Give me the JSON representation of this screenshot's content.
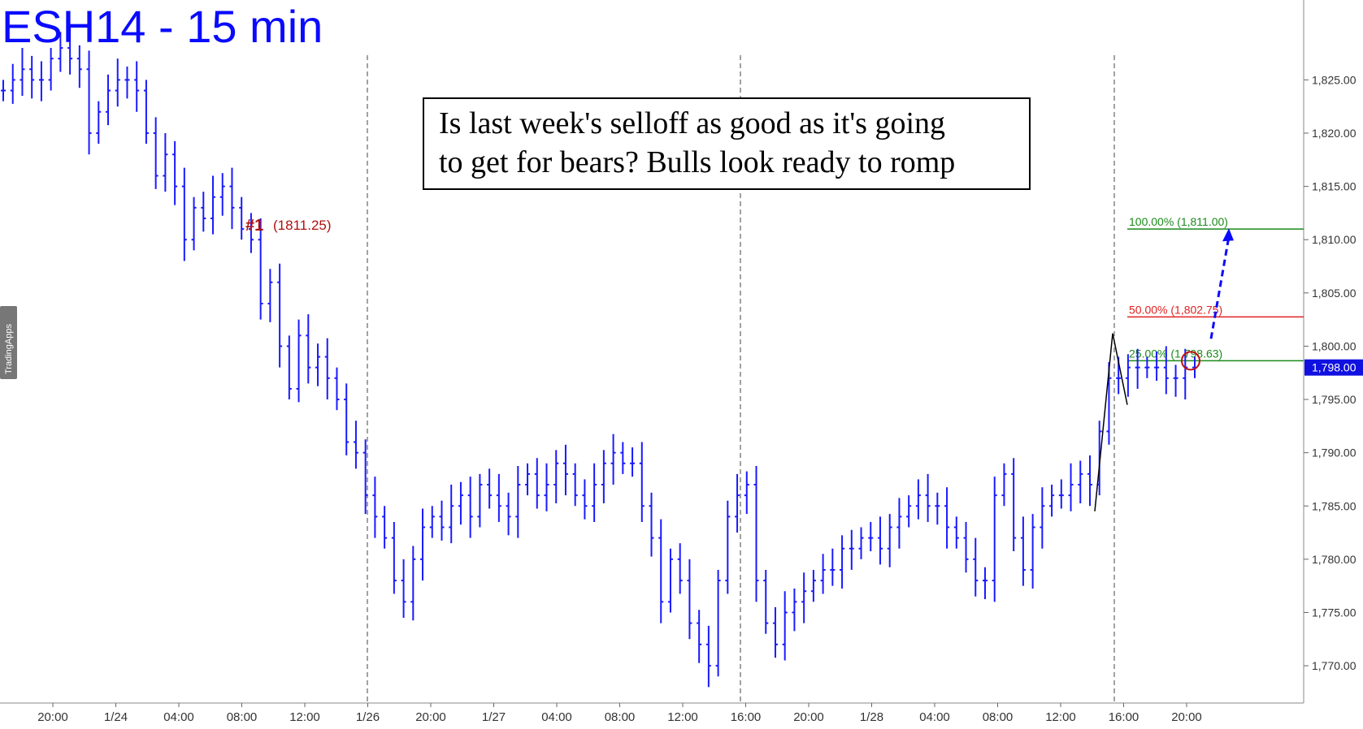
{
  "chart_data": {
    "type": "ohlc",
    "title": "ESH14 - 15 min",
    "annotation_box": {
      "line1": "Is last week's selloff as good as it's going",
      "line2": "to get for bears? Bulls look ready to romp"
    },
    "y_axis": {
      "ticks": [
        1770,
        1775,
        1780,
        1785,
        1790,
        1795,
        1800,
        1805,
        1810,
        1815,
        1820,
        1825
      ],
      "tick_labels": [
        "1,770.00",
        "1,775.00",
        "1,780.00",
        "1,785.00",
        "1,790.00",
        "1,795.00",
        "1,800.00",
        "1,805.00",
        "1,810.00",
        "1,815.00",
        "1,820.00",
        "1,825.00"
      ],
      "ylim": [
        1766.5,
        1832.5
      ],
      "last_price_label": "1,798.00",
      "last_price": 1798.0
    },
    "x_axis": {
      "tick_labels": [
        "20:00",
        "1/24",
        "04:00",
        "08:00",
        "12:00",
        "1/26",
        "20:00",
        "1/27",
        "04:00",
        "08:00",
        "12:00",
        "16:00",
        "20:00",
        "1/28",
        "04:00",
        "08:00",
        "12:00",
        "16:00",
        "20:00"
      ],
      "session_breaks": [
        "1/26",
        "16:00",
        "16:00"
      ]
    },
    "series_close": [
      1824,
      1825,
      1826,
      1825,
      1825,
      1827,
      1828,
      1827,
      1826,
      1820,
      1822,
      1824,
      1825,
      1825,
      1824,
      1820,
      1816,
      1818,
      1815,
      1810,
      1813,
      1812,
      1814,
      1815,
      1813,
      1811,
      1810,
      1804,
      1806,
      1800,
      1796,
      1801,
      1798,
      1799,
      1797,
      1795,
      1791,
      1790,
      1786,
      1784,
      1782,
      1778,
      1776,
      1780,
      1783,
      1784,
      1783,
      1785,
      1786,
      1784,
      1787,
      1786,
      1785,
      1784,
      1787,
      1788,
      1786,
      1787,
      1789,
      1788,
      1786,
      1785,
      1787,
      1789,
      1790,
      1789,
      1789,
      1785,
      1782,
      1776,
      1780,
      1778,
      1774,
      1772,
      1770,
      1778,
      1784,
      1786,
      1787,
      1778,
      1774,
      1772,
      1775,
      1776,
      1777,
      1778,
      1779,
      1779,
      1781,
      1781,
      1782,
      1782,
      1781,
      1783,
      1784,
      1785,
      1786,
      1785,
      1785,
      1783,
      1782,
      1780,
      1778,
      1778,
      1786,
      1788,
      1782,
      1779,
      1783,
      1785,
      1786,
      1786,
      1787,
      1788,
      1787,
      1792,
      1797,
      1797,
      1798,
      1798,
      1798,
      1798,
      1797,
      1797,
      1798,
      1798
    ],
    "fib_levels": [
      {
        "label": "100.00% (1,811.00)",
        "value": 1811.0,
        "color": "#1a8a1a"
      },
      {
        "label": "50.00% (1,802.75)",
        "value": 1802.75,
        "color": "#e02020"
      },
      {
        "label": "25.00% (1,798.63)",
        "value": 1798.63,
        "color": "#1a8a1a"
      }
    ],
    "marker": {
      "label": "#1",
      "value_label": "(1811.25)",
      "value": 1811.25,
      "color": "#b01010"
    },
    "watermark": "TradingApps",
    "colors": {
      "bars": "#1a1aff",
      "title": "#0a0aff",
      "grid": "#000000",
      "projection_arrow": "#0a0aff"
    }
  }
}
